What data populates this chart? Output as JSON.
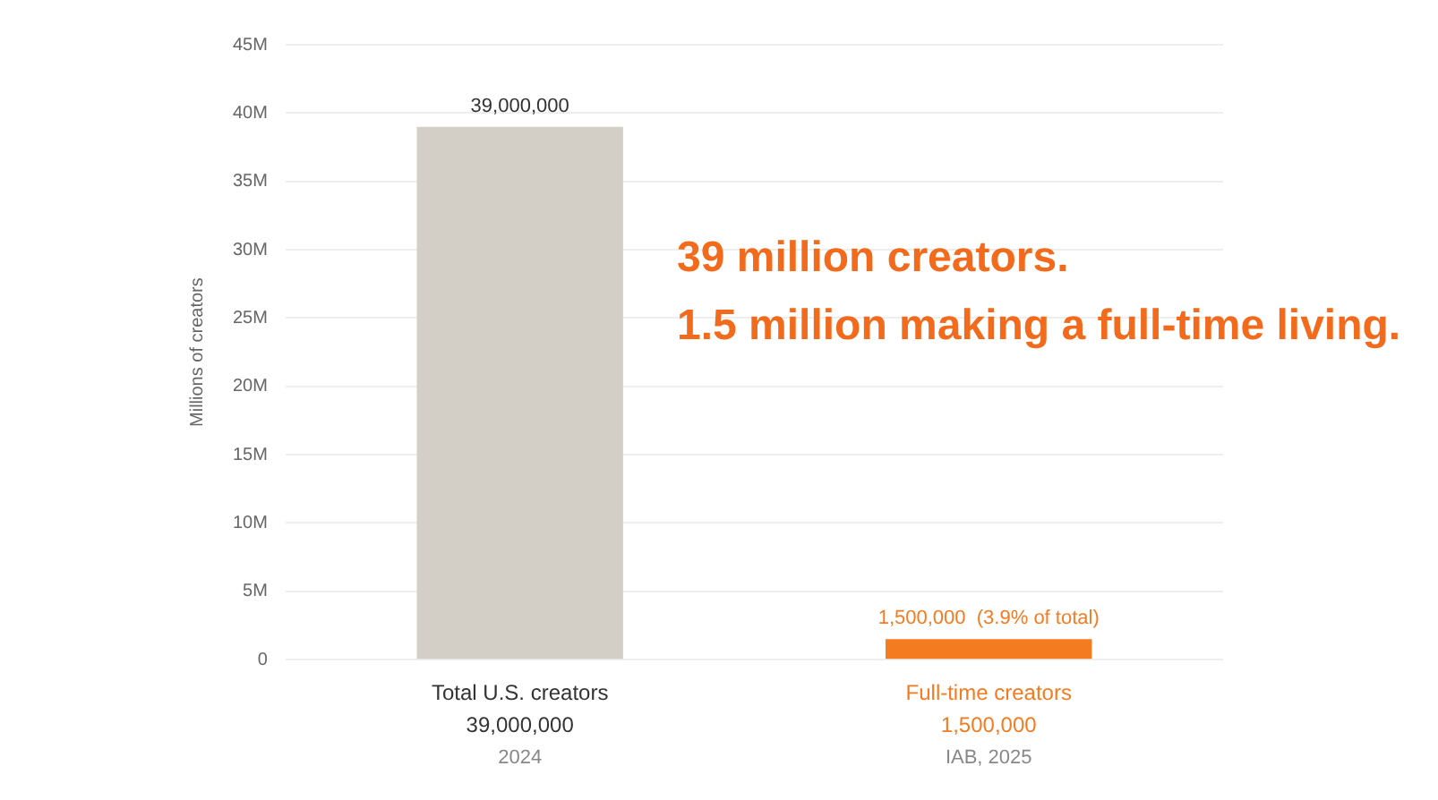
{
  "chart_data": {
    "type": "bar",
    "ylabel": "Millions of creators",
    "categories": [
      "Total U.S. creators",
      "Full-time creators"
    ],
    "values": [
      39000000,
      1500000
    ],
    "colors": [
      "#d4cfc6",
      "#f47b20"
    ],
    "value_labels": [
      "39,000,000",
      "1,500,000  (3.9% of total)"
    ],
    "ylim": [
      0,
      45000000
    ],
    "yticks": [
      {
        "value": 0,
        "label": "0"
      },
      {
        "value": 5000000,
        "label": "5M"
      },
      {
        "value": 10000000,
        "label": "10M"
      },
      {
        "value": 15000000,
        "label": "15M"
      },
      {
        "value": 20000000,
        "label": "20M"
      },
      {
        "value": 25000000,
        "label": "25M"
      },
      {
        "value": 30000000,
        "label": "30M"
      },
      {
        "value": 35000000,
        "label": "35M"
      },
      {
        "value": 40000000,
        "label": "40M"
      },
      {
        "value": 45000000,
        "label": "45M"
      }
    ],
    "grid": "y",
    "legend": false,
    "annotations": [
      "39,000,000",
      "2024",
      "1,500,000",
      "IAB, 2025",
      "39 million creators.",
      "1.5 million making a full-time living."
    ]
  }
}
